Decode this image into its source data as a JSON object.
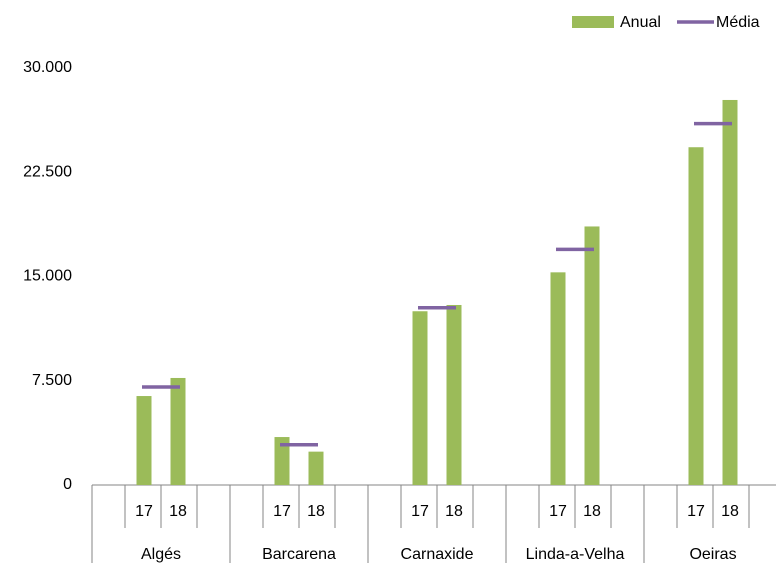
{
  "chart_data": {
    "type": "bar",
    "categories": [
      "Algés",
      "Barcarena",
      "Carnaxide",
      "Linda-a-Velha",
      "Oeiras"
    ],
    "subcategories": [
      "17",
      "18"
    ],
    "series": [
      {
        "name": "Anual",
        "color": "#9bbb59",
        "values": [
          [
            6400,
            7700
          ],
          [
            3450,
            2400
          ],
          [
            12500,
            12950
          ],
          [
            15300,
            18600
          ],
          [
            24300,
            27700
          ]
        ]
      },
      {
        "name": "Média",
        "color": "#8064a2",
        "type": "line-marker",
        "values": [
          7050,
          2900,
          12750,
          16950,
          26000
        ]
      }
    ],
    "ylim": [
      0,
      30000
    ],
    "yticks": [
      0,
      {
        "value": 7500,
        "label": "7.500"
      },
      {
        "value": 15000,
        "label": "15.000"
      },
      {
        "value": 22500,
        "label": "22.500"
      },
      {
        "value": 30000,
        "label": "30.000"
      }
    ],
    "legend": "top-right"
  }
}
